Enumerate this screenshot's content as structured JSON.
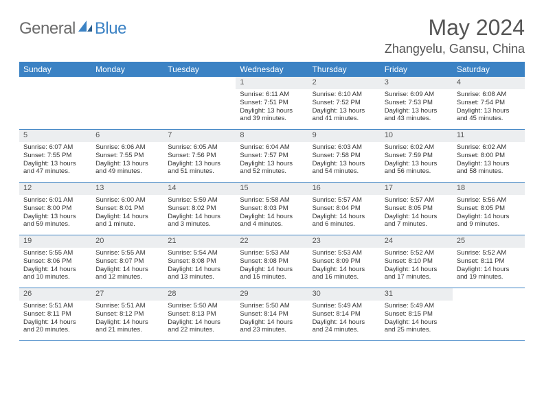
{
  "logo": {
    "text1": "General",
    "text2": "Blue"
  },
  "title": "May 2024",
  "location": "Zhangyelu, Gansu, China",
  "colors": {
    "header_bg": "#3b82c4",
    "header_text": "#ffffff",
    "date_bg": "#eceef0",
    "border": "#3b82c4",
    "body_text": "#333333",
    "title_text": "#555555",
    "logo_gray": "#6b6b6b",
    "logo_blue": "#3b82c4"
  },
  "day_names": [
    "Sunday",
    "Monday",
    "Tuesday",
    "Wednesday",
    "Thursday",
    "Friday",
    "Saturday"
  ],
  "weeks": [
    [
      {
        "empty": true
      },
      {
        "empty": true
      },
      {
        "empty": true
      },
      {
        "date": "1",
        "sunrise": "Sunrise: 6:11 AM",
        "sunset": "Sunset: 7:51 PM",
        "day1": "Daylight: 13 hours",
        "day2": "and 39 minutes."
      },
      {
        "date": "2",
        "sunrise": "Sunrise: 6:10 AM",
        "sunset": "Sunset: 7:52 PM",
        "day1": "Daylight: 13 hours",
        "day2": "and 41 minutes."
      },
      {
        "date": "3",
        "sunrise": "Sunrise: 6:09 AM",
        "sunset": "Sunset: 7:53 PM",
        "day1": "Daylight: 13 hours",
        "day2": "and 43 minutes."
      },
      {
        "date": "4",
        "sunrise": "Sunrise: 6:08 AM",
        "sunset": "Sunset: 7:54 PM",
        "day1": "Daylight: 13 hours",
        "day2": "and 45 minutes."
      }
    ],
    [
      {
        "date": "5",
        "sunrise": "Sunrise: 6:07 AM",
        "sunset": "Sunset: 7:55 PM",
        "day1": "Daylight: 13 hours",
        "day2": "and 47 minutes."
      },
      {
        "date": "6",
        "sunrise": "Sunrise: 6:06 AM",
        "sunset": "Sunset: 7:55 PM",
        "day1": "Daylight: 13 hours",
        "day2": "and 49 minutes."
      },
      {
        "date": "7",
        "sunrise": "Sunrise: 6:05 AM",
        "sunset": "Sunset: 7:56 PM",
        "day1": "Daylight: 13 hours",
        "day2": "and 51 minutes."
      },
      {
        "date": "8",
        "sunrise": "Sunrise: 6:04 AM",
        "sunset": "Sunset: 7:57 PM",
        "day1": "Daylight: 13 hours",
        "day2": "and 52 minutes."
      },
      {
        "date": "9",
        "sunrise": "Sunrise: 6:03 AM",
        "sunset": "Sunset: 7:58 PM",
        "day1": "Daylight: 13 hours",
        "day2": "and 54 minutes."
      },
      {
        "date": "10",
        "sunrise": "Sunrise: 6:02 AM",
        "sunset": "Sunset: 7:59 PM",
        "day1": "Daylight: 13 hours",
        "day2": "and 56 minutes."
      },
      {
        "date": "11",
        "sunrise": "Sunrise: 6:02 AM",
        "sunset": "Sunset: 8:00 PM",
        "day1": "Daylight: 13 hours",
        "day2": "and 58 minutes."
      }
    ],
    [
      {
        "date": "12",
        "sunrise": "Sunrise: 6:01 AM",
        "sunset": "Sunset: 8:00 PM",
        "day1": "Daylight: 13 hours",
        "day2": "and 59 minutes."
      },
      {
        "date": "13",
        "sunrise": "Sunrise: 6:00 AM",
        "sunset": "Sunset: 8:01 PM",
        "day1": "Daylight: 14 hours",
        "day2": "and 1 minute."
      },
      {
        "date": "14",
        "sunrise": "Sunrise: 5:59 AM",
        "sunset": "Sunset: 8:02 PM",
        "day1": "Daylight: 14 hours",
        "day2": "and 3 minutes."
      },
      {
        "date": "15",
        "sunrise": "Sunrise: 5:58 AM",
        "sunset": "Sunset: 8:03 PM",
        "day1": "Daylight: 14 hours",
        "day2": "and 4 minutes."
      },
      {
        "date": "16",
        "sunrise": "Sunrise: 5:57 AM",
        "sunset": "Sunset: 8:04 PM",
        "day1": "Daylight: 14 hours",
        "day2": "and 6 minutes."
      },
      {
        "date": "17",
        "sunrise": "Sunrise: 5:57 AM",
        "sunset": "Sunset: 8:05 PM",
        "day1": "Daylight: 14 hours",
        "day2": "and 7 minutes."
      },
      {
        "date": "18",
        "sunrise": "Sunrise: 5:56 AM",
        "sunset": "Sunset: 8:05 PM",
        "day1": "Daylight: 14 hours",
        "day2": "and 9 minutes."
      }
    ],
    [
      {
        "date": "19",
        "sunrise": "Sunrise: 5:55 AM",
        "sunset": "Sunset: 8:06 PM",
        "day1": "Daylight: 14 hours",
        "day2": "and 10 minutes."
      },
      {
        "date": "20",
        "sunrise": "Sunrise: 5:55 AM",
        "sunset": "Sunset: 8:07 PM",
        "day1": "Daylight: 14 hours",
        "day2": "and 12 minutes."
      },
      {
        "date": "21",
        "sunrise": "Sunrise: 5:54 AM",
        "sunset": "Sunset: 8:08 PM",
        "day1": "Daylight: 14 hours",
        "day2": "and 13 minutes."
      },
      {
        "date": "22",
        "sunrise": "Sunrise: 5:53 AM",
        "sunset": "Sunset: 8:08 PM",
        "day1": "Daylight: 14 hours",
        "day2": "and 15 minutes."
      },
      {
        "date": "23",
        "sunrise": "Sunrise: 5:53 AM",
        "sunset": "Sunset: 8:09 PM",
        "day1": "Daylight: 14 hours",
        "day2": "and 16 minutes."
      },
      {
        "date": "24",
        "sunrise": "Sunrise: 5:52 AM",
        "sunset": "Sunset: 8:10 PM",
        "day1": "Daylight: 14 hours",
        "day2": "and 17 minutes."
      },
      {
        "date": "25",
        "sunrise": "Sunrise: 5:52 AM",
        "sunset": "Sunset: 8:11 PM",
        "day1": "Daylight: 14 hours",
        "day2": "and 19 minutes."
      }
    ],
    [
      {
        "date": "26",
        "sunrise": "Sunrise: 5:51 AM",
        "sunset": "Sunset: 8:11 PM",
        "day1": "Daylight: 14 hours",
        "day2": "and 20 minutes."
      },
      {
        "date": "27",
        "sunrise": "Sunrise: 5:51 AM",
        "sunset": "Sunset: 8:12 PM",
        "day1": "Daylight: 14 hours",
        "day2": "and 21 minutes."
      },
      {
        "date": "28",
        "sunrise": "Sunrise: 5:50 AM",
        "sunset": "Sunset: 8:13 PM",
        "day1": "Daylight: 14 hours",
        "day2": "and 22 minutes."
      },
      {
        "date": "29",
        "sunrise": "Sunrise: 5:50 AM",
        "sunset": "Sunset: 8:14 PM",
        "day1": "Daylight: 14 hours",
        "day2": "and 23 minutes."
      },
      {
        "date": "30",
        "sunrise": "Sunrise: 5:49 AM",
        "sunset": "Sunset: 8:14 PM",
        "day1": "Daylight: 14 hours",
        "day2": "and 24 minutes."
      },
      {
        "date": "31",
        "sunrise": "Sunrise: 5:49 AM",
        "sunset": "Sunset: 8:15 PM",
        "day1": "Daylight: 14 hours",
        "day2": "and 25 minutes."
      },
      {
        "empty": true
      }
    ]
  ]
}
